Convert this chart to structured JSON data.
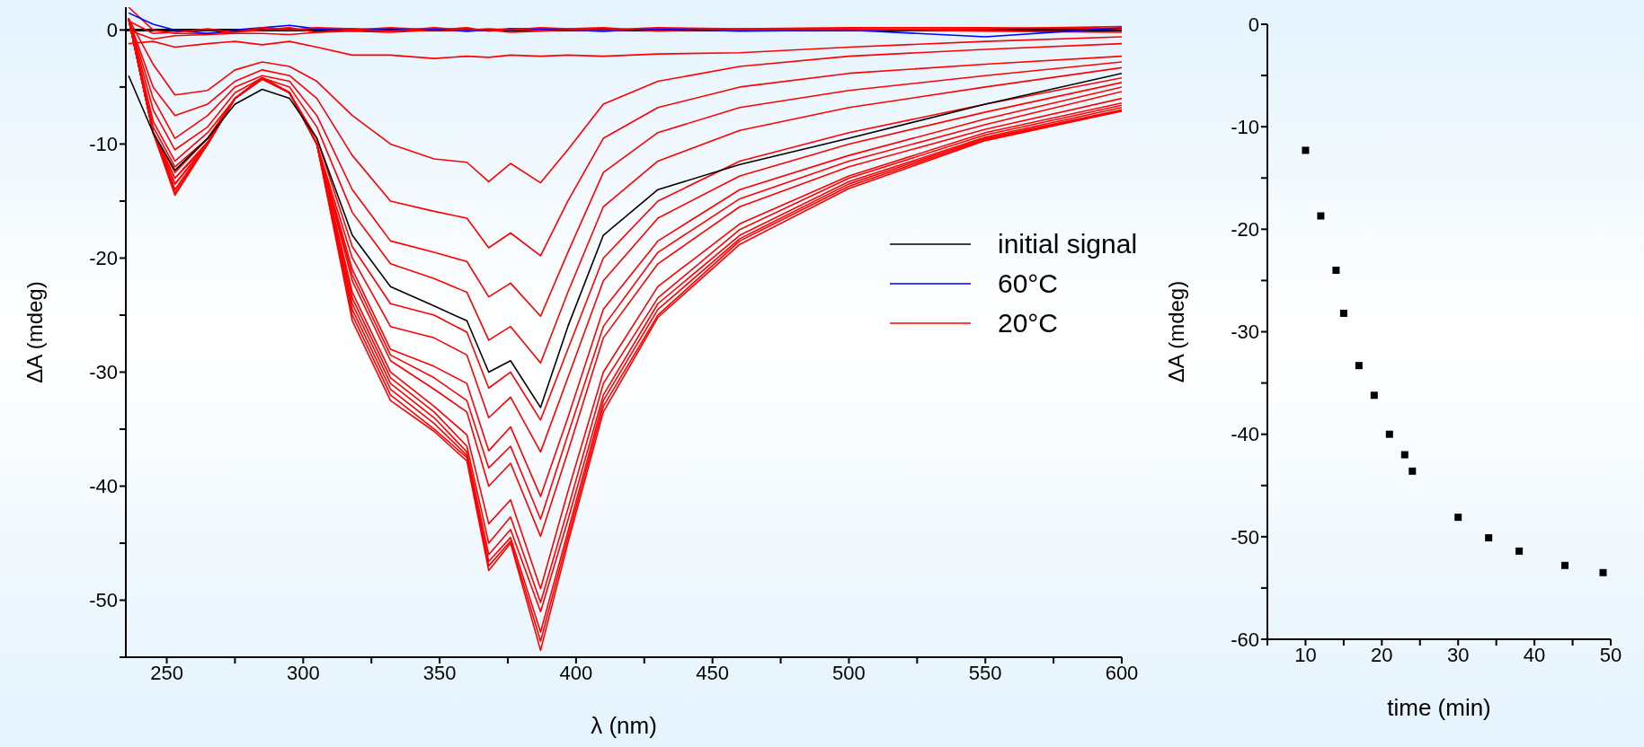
{
  "chart_data": [
    {
      "type": "line",
      "xlabel": "λ (nm)",
      "ylabel": "ΔA (mdeg)",
      "xlim": [
        235,
        600
      ],
      "ylim": [
        -55,
        2
      ],
      "xticks": [
        250,
        {
          "value": 275,
          "label": null
        },
        300,
        {
          "value": 325,
          "label": null
        },
        350,
        {
          "value": 375,
          "label": null
        },
        400,
        {
          "value": 425,
          "label": null
        },
        450,
        {
          "value": 475,
          "label": null
        },
        500,
        {
          "value": 525,
          "label": null
        },
        550,
        {
          "value": 575,
          "label": null
        },
        600
      ],
      "yticks": [
        {
          "value": -55,
          "label": null
        },
        -50,
        {
          "value": -45,
          "label": null
        },
        -40,
        {
          "value": -35,
          "label": null
        },
        -30,
        {
          "value": -25,
          "label": null
        },
        -20,
        {
          "value": -15,
          "label": null
        },
        -10,
        {
          "value": -5,
          "label": null
        },
        0
      ],
      "legend": "right",
      "line_style": "solid",
      "ref_lines": [
        {
          "axis": "y",
          "value": 0,
          "color": "#000000"
        }
      ],
      "x": [
        236,
        245,
        253,
        265,
        275,
        285,
        295,
        305,
        318,
        332,
        348,
        360,
        368,
        376,
        387,
        397,
        410,
        430,
        460,
        500,
        550,
        600
      ],
      "series": [
        {
          "color": "#ff0000",
          "values": [
            2,
            0,
            -0.3,
            -0.3,
            -0.2,
            0,
            0.2,
            -0.2,
            0,
            0.2,
            0,
            0.2,
            -0.1,
            0.1,
            0,
            0.1,
            0.2,
            -0.1,
            0.1,
            0.2,
            0.2,
            0.1
          ]
        },
        {
          "color": "#ff0000",
          "values": [
            0,
            -0.8,
            -0.5,
            -0.4,
            -0.3,
            -0.3,
            -0.4,
            -0.2,
            -0.1,
            -0.2,
            0,
            -0.1,
            0,
            -0.2,
            -0.1,
            0,
            -0.1,
            0.1,
            0,
            0.1,
            -0.1,
            -0.2
          ]
        },
        {
          "color": "#ff0000",
          "values": [
            -1.2,
            -1,
            -1.5,
            -1.2,
            -1,
            -1.3,
            -1,
            -1.5,
            -2.2,
            -2.2,
            -2.5,
            -2.3,
            -2.4,
            -2.2,
            -2.3,
            -2.2,
            -2.3,
            -2.1,
            -2,
            -1.5,
            -1,
            -0.6
          ]
        },
        {
          "color": "#ff0000",
          "values": [
            1,
            -3,
            -5.7,
            -5.3,
            -3.5,
            -2.8,
            -3.2,
            -4.5,
            -7.5,
            -10,
            -11.3,
            -11.6,
            -13.3,
            -11.7,
            -13.4,
            -10.5,
            -6.5,
            -4.5,
            -3.2,
            -2.3,
            -1.7,
            -1.2
          ]
        },
        {
          "color": "#ff0000",
          "values": [
            1,
            -5,
            -7.5,
            -6.5,
            -4.5,
            -3.5,
            -4,
            -6,
            -11,
            -15,
            -15.9,
            -16.5,
            -19.1,
            -17.8,
            -19.8,
            -15,
            -9.5,
            -6.8,
            -5,
            -3.8,
            -3,
            -2.3
          ]
        },
        {
          "color": "#ff0000",
          "values": [
            1,
            -6,
            -9.5,
            -7.5,
            -5,
            -4,
            -4.5,
            -7.5,
            -14,
            -18.5,
            -19.5,
            -20.3,
            -23.4,
            -22.2,
            -25.1,
            -19.5,
            -12.5,
            -9,
            -6.8,
            -5.3,
            -4,
            -2.8
          ]
        },
        {
          "color": "#ff0000",
          "values": [
            1,
            -7,
            -10.5,
            -8.5,
            -5.5,
            -4.2,
            -5,
            -8.5,
            -16,
            -20.5,
            -21.8,
            -23,
            -27.2,
            -26,
            -29.2,
            -23,
            -15.5,
            -11.5,
            -8.8,
            -6.8,
            -5,
            -3.3
          ]
        },
        {
          "color": "#ff0000",
          "values": [
            1,
            -8,
            -11.5,
            -9,
            -6,
            -4.3,
            -5.5,
            -9.5,
            -19,
            -24,
            -25,
            -26.5,
            -31.4,
            -30,
            -34.2,
            -28,
            -20,
            -15,
            -11.5,
            -9,
            -6.5,
            -4.2
          ]
        },
        {
          "color": "#ff0000",
          "values": [
            1,
            -8.5,
            -12,
            -9.5,
            -6,
            -4.3,
            -5.5,
            -10,
            -20,
            -26,
            -27,
            -28.5,
            -34,
            -32.2,
            -37,
            -30.5,
            -22,
            -16.5,
            -12.8,
            -10,
            -7.2,
            -4.6
          ]
        },
        {
          "color": "#ff0000",
          "values": [
            1,
            -9,
            -12.5,
            -9.5,
            -6,
            -4.3,
            -5.5,
            -10,
            -21,
            -28,
            -29.5,
            -31,
            -36.9,
            -34.8,
            -40.9,
            -34,
            -24.5,
            -18.5,
            -14,
            -11,
            -7.8,
            -5
          ]
        },
        {
          "color": "#ff0000",
          "values": [
            1,
            -9,
            -13,
            -9.8,
            -6,
            -4.3,
            -5.5,
            -10,
            -21.5,
            -28.5,
            -30.5,
            -32.5,
            -38.4,
            -36.5,
            -42.9,
            -35.5,
            -26,
            -19.5,
            -14.8,
            -11.5,
            -8.3,
            -5.4
          ]
        },
        {
          "color": "#ff0000",
          "values": [
            1,
            -9,
            -13,
            -10,
            -6,
            -4.2,
            -5.5,
            -10,
            -22,
            -29,
            -31.5,
            -33.5,
            -40,
            -38,
            -44.4,
            -37,
            -27,
            -20.5,
            -15.5,
            -12,
            -8.7,
            -6
          ]
        },
        {
          "color": "#ff0000",
          "values": [
            1,
            -9,
            -13.5,
            -10,
            -6,
            -4.2,
            -5.5,
            -10,
            -23,
            -30,
            -33,
            -35.5,
            -43.3,
            -41.2,
            -49,
            -40.5,
            -30,
            -22.5,
            -17,
            -12.8,
            -9,
            -6.4
          ]
        },
        {
          "color": "#ff0000",
          "values": [
            1,
            -9,
            -13.5,
            -10,
            -6,
            -4.2,
            -5.5,
            -10,
            -23.5,
            -30.5,
            -33.5,
            -36.5,
            -45,
            -42.7,
            -50.2,
            -42,
            -31,
            -23.5,
            -17.5,
            -13,
            -9.2,
            -6.6
          ]
        },
        {
          "color": "#ff0000",
          "values": [
            1,
            -9,
            -14,
            -10,
            -6,
            -4.2,
            -5.5,
            -10,
            -24,
            -31,
            -34,
            -37,
            -46,
            -43.8,
            -51,
            -43,
            -32,
            -24,
            -18,
            -13.3,
            -9.4,
            -6.8
          ]
        },
        {
          "color": "#ff0000",
          "values": [
            1,
            -9,
            -14,
            -10,
            -6,
            -4.2,
            -5.5,
            -10,
            -24.5,
            -31.5,
            -34.5,
            -37.3,
            -46.6,
            -44.5,
            -52.8,
            -44,
            -32.5,
            -24.5,
            -18.3,
            -13.5,
            -9.5,
            -7
          ]
        },
        {
          "color": "#ff0000",
          "values": [
            1,
            -9,
            -14.3,
            -10,
            -6,
            -4.2,
            -5.5,
            -10,
            -25,
            -32,
            -35,
            -37.5,
            -47,
            -44.8,
            -53.6,
            -44.5,
            -33,
            -25,
            -18.5,
            -13.7,
            -9.6,
            -7.1
          ]
        },
        {
          "color": "#ff0000",
          "values": [
            1,
            -9,
            -14.5,
            -10,
            -6,
            -4.2,
            -5.5,
            -10,
            -25.5,
            -32.5,
            -35.2,
            -37.8,
            -47.4,
            -45,
            -54.4,
            -45,
            -33.5,
            -25.2,
            -18.8,
            -13.9,
            -9.7,
            -7.1
          ]
        },
        {
          "name": "initial signal",
          "color": "#000000",
          "values": [
            -4,
            -9,
            -12.3,
            -9.5,
            -6.5,
            -5.2,
            -6,
            -9.5,
            -18,
            -22.5,
            -24.2,
            -25.5,
            -30,
            -29,
            -33.1,
            -26,
            -18,
            -14,
            -11.8,
            -9.5,
            -6.5,
            -3.8
          ]
        },
        {
          "name": "60°C",
          "color": "#0000ff",
          "values": [
            1.5,
            0.5,
            0,
            -0.3,
            0,
            0.2,
            0.4,
            0.1,
            0.1,
            0,
            0.1,
            -0.1,
            0,
            0.1,
            0.1,
            0,
            -0.1,
            0.1,
            -0.1,
            0,
            -0.6,
            0.2
          ]
        },
        {
          "name": "20°C",
          "color": "#ff0000",
          "values": [
            0.8,
            -0.3,
            -0.2,
            0.1,
            -0.2,
            0.2,
            0,
            0.2,
            0.1,
            -0.1,
            0.2,
            0,
            0.1,
            0,
            0.2,
            0.1,
            0,
            0.2,
            0.1,
            0,
            0.1,
            0.3
          ]
        }
      ]
    },
    {
      "type": "scatter",
      "xlabel": "time (min)",
      "ylabel": "ΔA (mdeg)",
      "xlim": [
        5,
        50
      ],
      "ylim": [
        -60,
        0
      ],
      "xticks": [
        {
          "value": 5,
          "label": null
        },
        10,
        {
          "value": 15,
          "label": null
        },
        20,
        {
          "value": 25,
          "label": null
        },
        30,
        {
          "value": 35,
          "label": null
        },
        40,
        {
          "value": 45,
          "label": null
        },
        50
      ],
      "yticks": [
        -60,
        {
          "value": -55,
          "label": null
        },
        -50,
        {
          "value": -45,
          "label": null
        },
        -40,
        {
          "value": -35,
          "label": null
        },
        -30,
        {
          "value": -25,
          "label": null
        },
        -20,
        {
          "value": -15,
          "label": null
        },
        -10,
        {
          "value": -5,
          "label": null
        },
        0
      ],
      "marker": "square",
      "color": "#000000",
      "x": [
        10,
        12,
        14,
        15,
        17,
        19,
        21,
        23,
        24,
        30,
        34,
        38,
        44,
        49
      ],
      "values": [
        -12.3,
        -18.7,
        -24,
        -28.2,
        -33.3,
        -36.2,
        -40,
        -42,
        -43.6,
        -48.1,
        -50.1,
        -51.4,
        -52.8,
        -53.5
      ]
    }
  ]
}
